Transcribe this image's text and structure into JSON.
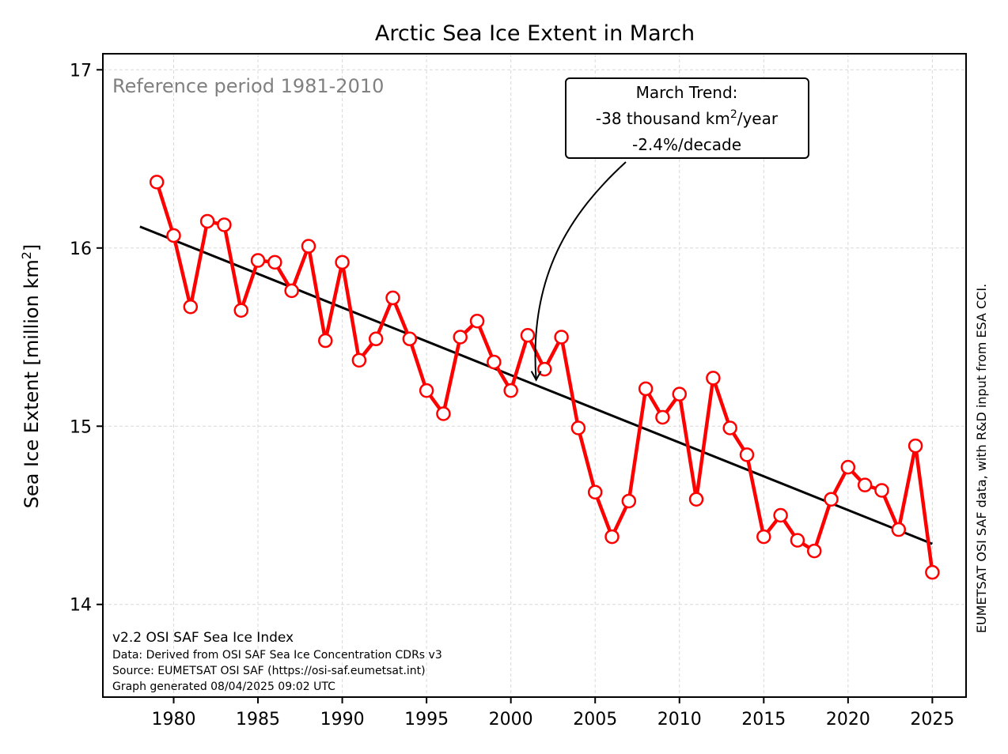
{
  "chart_data": {
    "type": "line",
    "title": "Arctic Sea Ice Extent in March",
    "ylabel_main": "Sea Ice Extent [million km",
    "ylabel_sup": "2",
    "ylabel_end": "]",
    "xlim": [
      1975.8,
      2027.0
    ],
    "ylim": [
      13.48,
      17.09
    ],
    "xticks": [
      1980,
      1985,
      1990,
      1995,
      2000,
      2005,
      2010,
      2015,
      2020,
      2025
    ],
    "yticks": [
      14,
      15,
      16,
      17
    ],
    "grid": true,
    "series": [
      {
        "color": "#ff0000",
        "x": [
          1979,
          1980,
          1981,
          1982,
          1983,
          1984,
          1985,
          1986,
          1987,
          1988,
          1989,
          1990,
          1991,
          1992,
          1993,
          1994,
          1995,
          1996,
          1997,
          1998,
          1999,
          2000,
          2001,
          2002,
          2003,
          2004,
          2005,
          2006,
          2007,
          2008,
          2009,
          2010,
          2011,
          2012,
          2013,
          2014,
          2015,
          2016,
          2017,
          2018,
          2019,
          2020,
          2021,
          2022,
          2023,
          2024,
          2025
        ],
        "y": [
          16.37,
          16.07,
          15.67,
          16.15,
          16.13,
          15.65,
          15.93,
          15.92,
          15.76,
          16.01,
          15.48,
          15.92,
          15.37,
          15.49,
          15.72,
          15.49,
          15.2,
          15.07,
          15.5,
          15.59,
          15.36,
          15.2,
          15.51,
          15.32,
          15.5,
          14.99,
          14.63,
          14.38,
          14.58,
          15.21,
          15.05,
          15.18,
          14.59,
          15.27,
          14.99,
          14.84,
          14.38,
          14.5,
          14.36,
          14.3,
          14.59,
          14.77,
          14.67,
          14.64,
          14.42,
          14.89,
          14.18
        ]
      }
    ],
    "trend": {
      "color": "#000000",
      "x": [
        1978,
        2025
      ],
      "y": [
        16.12,
        14.34
      ]
    },
    "annotation": {
      "line1": "March Trend:",
      "line2_pre": "-38 thousand km",
      "line2_sup": "2",
      "line2_post": "/year",
      "line3": "-2.4%/decade",
      "arrow_target": {
        "x": 2001.5,
        "y": 15.26
      }
    },
    "reference_note": "Reference period 1981-2010",
    "footer": {
      "line1": "v2.2 OSI SAF Sea Ice Index",
      "line2": "Data: Derived from OSI SAF Sea Ice Concentration CDRs v3",
      "line3": "Source: EUMETSAT OSI SAF (https://osi-saf.eumetsat.int)",
      "line4": "Graph generated 08/04/2025 09:02 UTC"
    },
    "side_note": "EUMETSAT OSI SAF data, with R&D input from ESA CCI."
  }
}
